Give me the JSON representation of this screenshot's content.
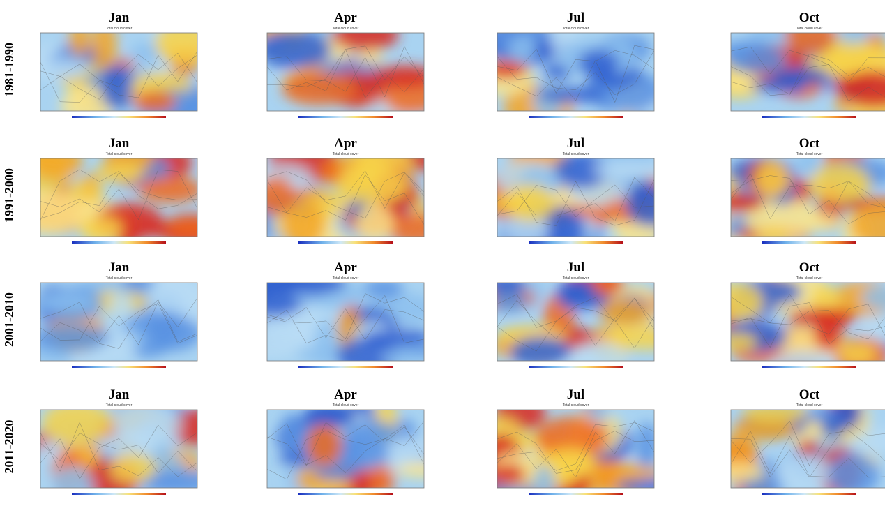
{
  "rows": [
    {
      "label": "1981-1990",
      "panels": [
        {
          "title": "Jan",
          "subtitle": "Total cloud cover"
        },
        {
          "title": "Apr",
          "subtitle": "Total cloud cover"
        },
        {
          "title": "Jul",
          "subtitle": "Total cloud cover"
        },
        {
          "title": "Oct",
          "subtitle": "Total cloud cover"
        }
      ]
    },
    {
      "label": "1991-2000",
      "panels": [
        {
          "title": "Jan",
          "subtitle": "Total cloud cover"
        },
        {
          "title": "Apr",
          "subtitle": "Total cloud cover"
        },
        {
          "title": "Jul",
          "subtitle": "Total cloud cover"
        },
        {
          "title": "Oct",
          "subtitle": "Total cloud cover"
        }
      ]
    },
    {
      "label": "2001-2010",
      "panels": [
        {
          "title": "Jan",
          "subtitle": "Total cloud cover"
        },
        {
          "title": "Apr",
          "subtitle": "Total cloud cover"
        },
        {
          "title": "Jul",
          "subtitle": "Total cloud cover"
        },
        {
          "title": "Oct",
          "subtitle": "Total cloud cover"
        }
      ]
    },
    {
      "label": "2011-2020",
      "panels": [
        {
          "title": "Jan",
          "subtitle": "Total cloud cover"
        },
        {
          "title": "Apr",
          "subtitle": "Total cloud cover"
        },
        {
          "title": "Jul",
          "subtitle": "Total cloud cover"
        },
        {
          "title": "Oct",
          "subtitle": "Total cloud cover"
        }
      ]
    }
  ]
}
